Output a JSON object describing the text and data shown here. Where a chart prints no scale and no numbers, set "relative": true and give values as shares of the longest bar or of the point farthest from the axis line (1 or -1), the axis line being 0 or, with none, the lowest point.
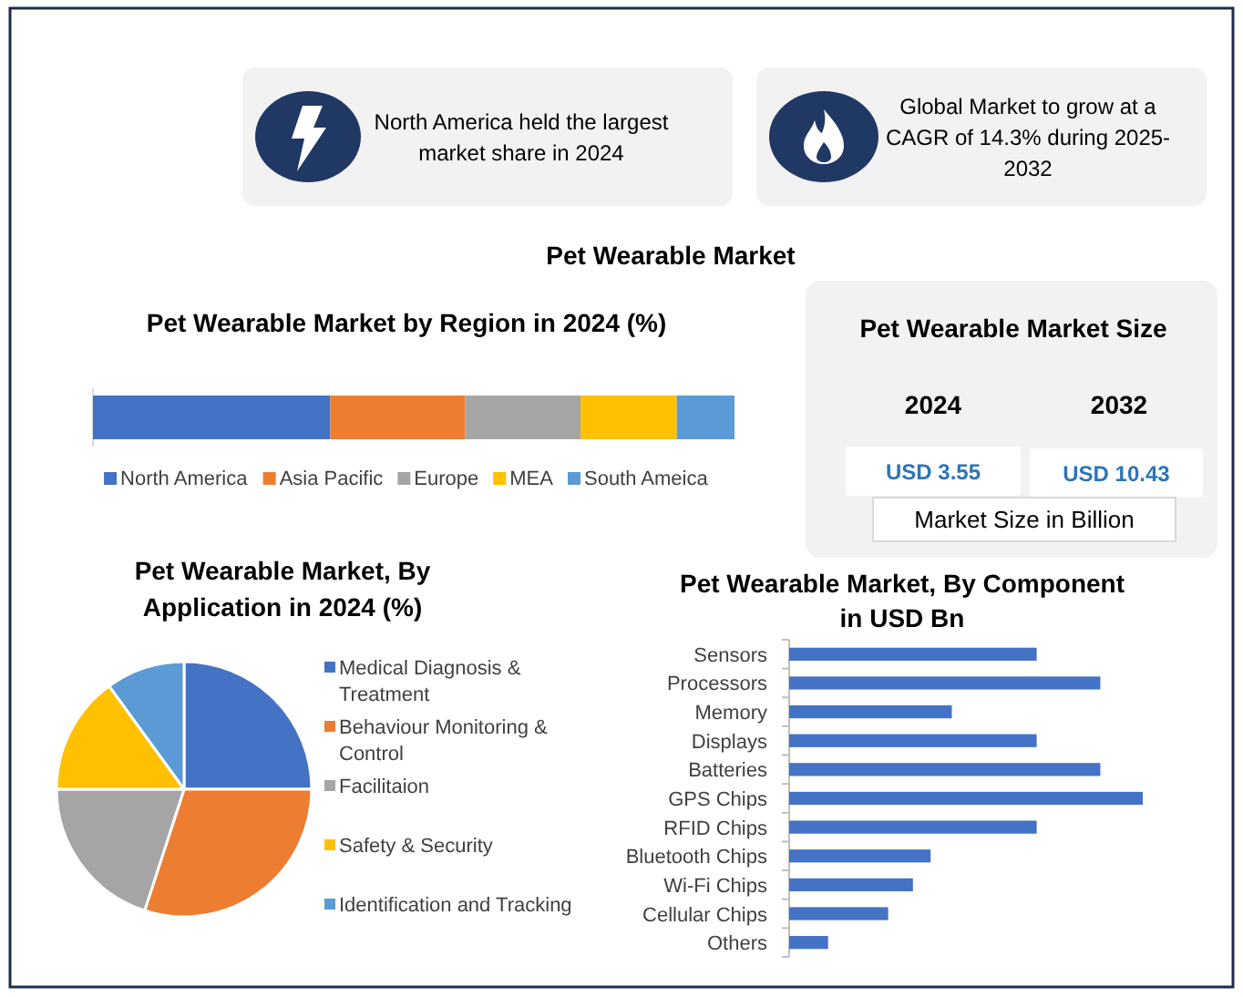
{
  "chart_data": [
    {
      "type": "other",
      "title": "Pet Wearable Market",
      "annotations": [
        "North America held the largest market share in 2024",
        "Global Market to grow at a CAGR of 14.3% during 2025-2032"
      ]
    },
    {
      "type": "bar",
      "title": "Pet Wearable Market by Region in 2024 (%)",
      "orientation": "horizontal",
      "stacked": true,
      "relative": true,
      "categories": [
        null
      ],
      "series": [
        {
          "name": "North America",
          "color": "#4472c4",
          "values": [
            0.37
          ]
        },
        {
          "name": "Asia Pacific",
          "color": "#ed7d31",
          "values": [
            0.21
          ]
        },
        {
          "name": "Europe",
          "color": "#a5a5a5",
          "values": [
            0.18
          ]
        },
        {
          "name": "MEA",
          "color": "#ffc000",
          "values": [
            0.15
          ]
        },
        {
          "name": "South Ameica",
          "color": "#5b9bd5",
          "values": [
            0.09
          ]
        }
      ],
      "legend": "bottom"
    },
    {
      "type": "other",
      "title": "Pet Wearable Market Size",
      "categories": [
        "2024",
        "2032"
      ],
      "values": [
        3.55,
        10.43
      ],
      "value_labels": [
        "USD 3.55",
        "USD 10.43"
      ],
      "annotations": [
        "Market Size in Billion"
      ]
    },
    {
      "type": "pie",
      "title": "Pet Wearable Market, By Application in 2024 (%)",
      "categories": [
        "Medical Diagnosis & Treatment",
        "Behaviour Monitoring & Control",
        "Facilitaion",
        "Safety & Security",
        "Identification and Tracking"
      ],
      "values": [
        25,
        30,
        20,
        15,
        10
      ],
      "colors": [
        "#4472c4",
        "#ed7d31",
        "#a5a5a5",
        "#ffc000",
        "#5b9bd5"
      ],
      "legend": "right"
    },
    {
      "type": "bar",
      "title": "Pet Wearable Market, By Component in USD Bn",
      "orientation": "horizontal",
      "relative": true,
      "categories": [
        "Sensors",
        "Processors",
        "Memory",
        "Displays",
        "Batteries",
        "GPS Chips",
        "RFID Chips",
        "Bluetooth Chips",
        "Wi-Fi Chips",
        "Cellular Chips",
        "Others"
      ],
      "values": [
        0.7,
        0.88,
        0.46,
        0.7,
        0.88,
        1,
        0.7,
        0.4,
        0.35,
        0.28,
        0.11
      ],
      "color": "#4472c4"
    }
  ]
}
